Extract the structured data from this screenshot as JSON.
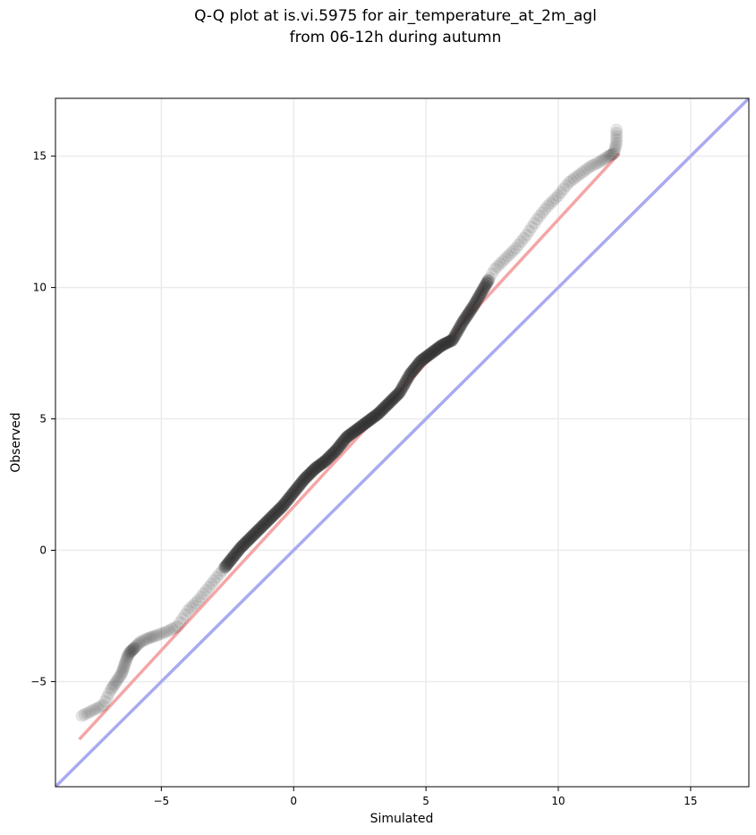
{
  "chart_data": {
    "type": "scatter",
    "title_lines": [
      "Q-Q plot at is.vi.5975 for air_temperature_at_2m_agl",
      "from 06-12h during autumn"
    ],
    "xlabel": "Simulated",
    "ylabel": "Observed",
    "xlim": [
      -9.0,
      17.2
    ],
    "ylim": [
      -9.0,
      17.2
    ],
    "xticks": [
      -5,
      0,
      5,
      10,
      15
    ],
    "yticks": [
      -5,
      0,
      5,
      10,
      15
    ],
    "xtick_labels": [
      "−5",
      "0",
      "5",
      "10",
      "15"
    ],
    "ytick_labels": [
      "−5",
      "0",
      "5",
      "10",
      "15"
    ],
    "grid": true,
    "colors": {
      "points": "#333333",
      "fit_line": "#f4a6a6",
      "fit_inner": "#8b1a1a",
      "identity_line": "#a9aaf0",
      "grid": "#ebebeb"
    },
    "identity_line": {
      "x": [
        -9.0,
        17.2
      ],
      "y": [
        -9.0,
        17.2
      ]
    },
    "fit_line": {
      "x": [
        -8.1,
        12.3
      ],
      "y": [
        -7.2,
        15.1
      ]
    },
    "points": {
      "x": [
        -8.0,
        -7.6,
        -7.2,
        -6.9,
        -6.7,
        -6.5,
        -6.4,
        -6.3,
        -6.2,
        -6.1,
        -6.0,
        -5.8,
        -5.5,
        -5.2,
        -4.8,
        -4.4,
        -4.0,
        -3.6,
        -3.2,
        -2.8,
        -2.4,
        -2.0,
        -1.6,
        -1.2,
        -0.8,
        -0.4,
        0.0,
        0.4,
        0.8,
        1.2,
        1.6,
        2.0,
        2.4,
        2.8,
        3.2,
        3.6,
        4.0,
        4.4,
        4.8,
        5.2,
        5.6,
        6.0,
        6.4,
        6.8,
        7.2,
        7.6,
        8.0,
        8.4,
        8.8,
        9.2,
        9.6,
        10.0,
        10.4,
        10.8,
        11.2,
        11.6,
        11.9,
        12.1,
        12.2,
        12.2
      ],
      "y": [
        -6.3,
        -6.1,
        -5.9,
        -5.3,
        -5.0,
        -4.7,
        -4.4,
        -4.1,
        -3.9,
        -3.8,
        -3.7,
        -3.5,
        -3.35,
        -3.25,
        -3.1,
        -2.9,
        -2.3,
        -1.9,
        -1.4,
        -0.9,
        -0.4,
        0.1,
        0.5,
        0.9,
        1.3,
        1.7,
        2.2,
        2.7,
        3.1,
        3.4,
        3.8,
        4.3,
        4.6,
        4.9,
        5.2,
        5.6,
        6.0,
        6.7,
        7.2,
        7.5,
        7.8,
        8.0,
        8.7,
        9.3,
        10.0,
        10.7,
        11.1,
        11.5,
        12.0,
        12.6,
        13.1,
        13.5,
        14.0,
        14.3,
        14.6,
        14.8,
        15.0,
        15.1,
        15.5,
        16.0
      ]
    }
  }
}
